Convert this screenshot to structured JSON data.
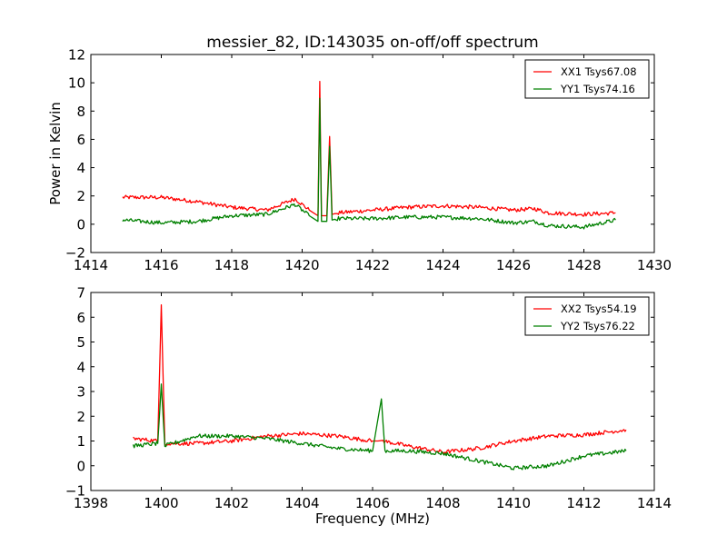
{
  "chart_data": [
    {
      "type": "line",
      "title": "messier_82, ID:143035 on-off/off spectrum",
      "xlabel": "",
      "ylabel": "Power in Kelvin",
      "xlim": [
        1414,
        1430
      ],
      "ylim": [
        -2,
        12
      ],
      "xticks": [
        "1414",
        "1416",
        "1418",
        "1420",
        "1422",
        "1424",
        "1426",
        "1428",
        "1430"
      ],
      "yticks": [
        "−2",
        "0",
        "2",
        "4",
        "6",
        "8",
        "10",
        "12"
      ],
      "legend_position": "top-right",
      "grid": false,
      "series": [
        {
          "name": "XX1 Tsys67.08",
          "color": "#ff0000",
          "x": [
            1414.9,
            1416,
            1417,
            1418,
            1419,
            1419.8,
            1420.2,
            1420.45,
            1420.5,
            1420.55,
            1420.7,
            1420.78,
            1420.85,
            1421,
            1422,
            1423,
            1424,
            1425,
            1426,
            1426.6,
            1427,
            1428,
            1428.9
          ],
          "y": [
            1.9,
            1.9,
            1.6,
            1.2,
            1.0,
            1.8,
            1.0,
            0.6,
            10.1,
            0.6,
            0.6,
            6.2,
            0.7,
            0.8,
            1.0,
            1.2,
            1.3,
            1.2,
            1.0,
            1.1,
            0.8,
            0.7,
            0.8
          ]
        },
        {
          "name": "YY1 Tsys74.16",
          "color": "#008000",
          "x": [
            1414.9,
            1416,
            1417,
            1418,
            1419,
            1419.8,
            1420.2,
            1420.45,
            1420.5,
            1420.55,
            1420.7,
            1420.78,
            1420.85,
            1421,
            1422,
            1423,
            1424,
            1425,
            1426,
            1426.6,
            1427,
            1428,
            1428.9
          ],
          "y": [
            0.3,
            0.1,
            0.2,
            0.6,
            0.7,
            1.4,
            0.6,
            0.2,
            8.9,
            0.2,
            0.2,
            5.5,
            0.3,
            0.4,
            0.4,
            0.5,
            0.5,
            0.4,
            0.1,
            0.2,
            -0.1,
            -0.2,
            0.3
          ]
        }
      ]
    },
    {
      "type": "line",
      "title": "",
      "xlabel": "Frequency (MHz)",
      "ylabel": "",
      "xlim": [
        1398,
        1414
      ],
      "ylim": [
        -1,
        7
      ],
      "xticks": [
        "1398",
        "1400",
        "1402",
        "1404",
        "1406",
        "1408",
        "1410",
        "1412",
        "1414"
      ],
      "yticks": [
        "−1",
        "0",
        "1",
        "2",
        "3",
        "4",
        "5",
        "6",
        "7"
      ],
      "legend_position": "top-right",
      "grid": false,
      "series": [
        {
          "name": "XX2 Tsys54.19",
          "color": "#ff0000",
          "x": [
            1399.2,
            1399.9,
            1400.0,
            1400.1,
            1401,
            1402,
            1403,
            1404,
            1405,
            1406,
            1406.3,
            1407,
            1408,
            1409,
            1410,
            1411,
            1412,
            1413.2
          ],
          "y": [
            1.1,
            1.0,
            6.5,
            0.9,
            0.9,
            1.0,
            1.2,
            1.3,
            1.2,
            1.0,
            1.0,
            0.8,
            0.55,
            0.7,
            1.0,
            1.2,
            1.25,
            1.45
          ]
        },
        {
          "name": "YY2 Tsys76.22",
          "color": "#008000",
          "x": [
            1399.2,
            1399.9,
            1400.0,
            1400.1,
            1401,
            1402,
            1403,
            1404,
            1405,
            1406,
            1406.25,
            1406.35,
            1407,
            1408,
            1409,
            1410,
            1411,
            1412,
            1413.2
          ],
          "y": [
            0.8,
            0.9,
            3.3,
            0.8,
            1.2,
            1.2,
            1.1,
            0.9,
            0.7,
            0.6,
            2.7,
            0.6,
            0.6,
            0.5,
            0.2,
            -0.1,
            0.0,
            0.4,
            0.6
          ]
        }
      ]
    }
  ]
}
